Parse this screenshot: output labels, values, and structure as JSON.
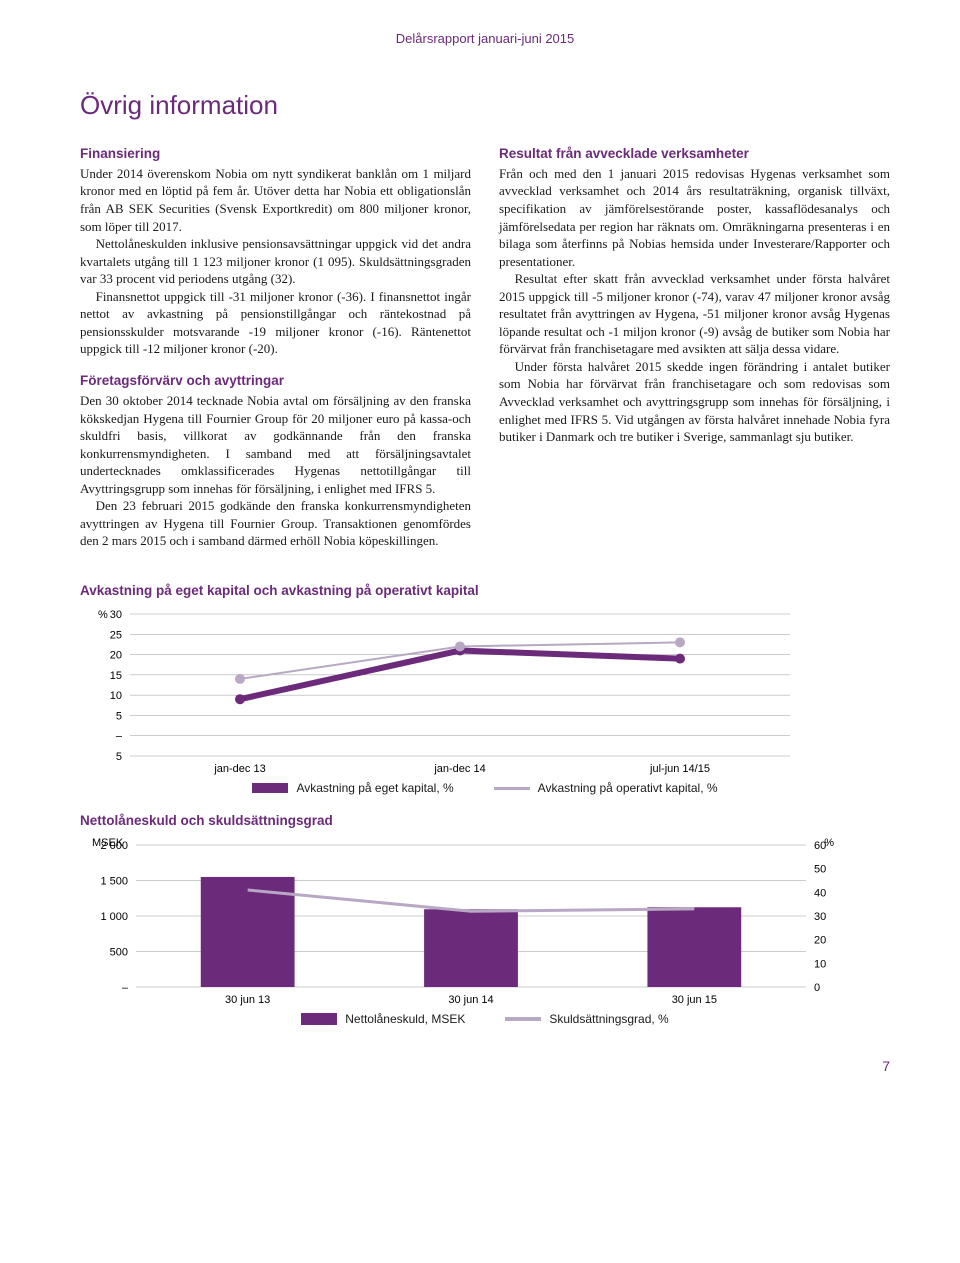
{
  "header": "Delårsrapport januari-juni 2015",
  "pageTitle": "Övrig information",
  "leftCol": {
    "s1_head": "Finansiering",
    "s1_p1": "Under 2014 överenskom Nobia om nytt syndikerat banklån om 1 miljard kronor med en löptid på fem år. Utöver detta har Nobia ett obligationslån från AB SEK Securities (Svensk Exportkredit) om 800 miljoner kronor, som löper till 2017.",
    "s1_p2": "Nettolåneskulden inklusive pensionsavsättningar uppgick vid det andra kvartalets utgång till 1 123 miljoner kronor (1 095). Skuldsättningsgraden var 33 procent vid periodens utgång (32).",
    "s1_p3": "Finansnettot uppgick till -31 miljoner kronor (-36). I finansnettot ingår nettot av avkastning på pensionstillgångar och räntekostnad på pensionsskulder motsvarande -19 miljoner kronor (-16). Räntenettot uppgick till -12 miljoner kronor (-20).",
    "s2_head": "Företagsförvärv och avyttringar",
    "s2_p1": "Den 30 oktober 2014 tecknade Nobia avtal om försäljning av den franska kökskedjan Hygena till Fournier Group för 20 miljoner euro på kassa-och skuldfri basis, villkorat av godkännande från den franska konkurrensmyndigheten. I samband med att försäljningsavtalet undertecknades omklassificerades Hygenas nettotillgångar till Avyttringsgrupp som innehas för försäljning, i enlighet med IFRS 5.",
    "s2_p2": "Den 23 februari 2015 godkände den franska konkurrensmyndigheten avyttringen av Hygena till Fournier Group. Transaktionen genomfördes den 2 mars 2015 och i samband därmed erhöll Nobia köpeskillingen."
  },
  "rightCol": {
    "s1_head": "Resultat från avvecklade verksamheter",
    "s1_p1": "Från och med den 1 januari 2015 redovisas Hygenas verksamhet som avvecklad verksamhet och 2014 års resultaträkning, organisk tillväxt, specifikation av jämförelsestörande poster, kassaflödesanalys och jämförelsedata per region har räknats om. Omräkningarna presenteras i en bilaga som återfinns på Nobias hemsida under Investerare/Rapporter och presentationer.",
    "s1_p2": "Resultat efter skatt från avvecklad verksamhet under första halvåret 2015 uppgick till -5 miljoner kronor (-74), varav 47 miljoner kronor avsåg resultatet från avyttringen av Hygena, -51 miljoner kronor avsåg Hygenas löpande resultat och -1 miljon kronor (-9) avsåg de butiker som Nobia har förvärvat från franchisetagare med avsikten att sälja dessa vidare.",
    "s1_p3": "Under första halvåret 2015 skedde ingen förändring i antalet butiker som Nobia har förvärvat från franchisetagare och som redovisas som Avvecklad verksamhet och avyttringsgrupp som innehas för försäljning, i enlighet med IFRS 5. Vid utgången av första halvåret innehade Nobia fyra butiker i Danmark och tre butiker i Sverige, sammanlagt sju butiker."
  },
  "chart1": {
    "title": "Avkastning på eget kapital och avkastning på operativt kapital",
    "type": "line",
    "y_unit": "%",
    "y_ticks": [
      -5,
      0,
      5,
      10,
      15,
      20,
      25,
      30
    ],
    "y_tick_labels": [
      "5",
      "–",
      "5",
      "10",
      "15",
      "20",
      "25",
      "30"
    ],
    "x_labels": [
      "jan-dec 13",
      "jan-dec 14",
      "jul-jun 14/15"
    ],
    "series": [
      {
        "label": "Avkastning på eget kapital, %",
        "color": "#6b2a7a",
        "swatch_w": 36,
        "swatch_h": 10,
        "values": [
          9,
          21,
          19
        ]
      },
      {
        "label": "Avkastning på operativt kapital, %",
        "color": "#b9a8c4",
        "swatch_w": 36,
        "swatch_h": 3,
        "values": [
          14,
          22,
          23
        ]
      }
    ],
    "grid_color": "#999",
    "bg": "#ffffff",
    "marker_radius": 5,
    "line_width_main": 6,
    "line_width_sec": 2
  },
  "chart2": {
    "title": "Nettolåneskuld och skuldsättningsgrad",
    "type": "bar-line",
    "left_unit": "MSEK",
    "right_unit": "%",
    "left_ticks": [
      0,
      500,
      1000,
      1500,
      2000
    ],
    "left_tick_labels": [
      "–",
      "500",
      "1 000",
      "1 500",
      "2 000"
    ],
    "right_ticks": [
      0,
      10,
      20,
      30,
      40,
      50,
      60
    ],
    "x_labels": [
      "30 jun 13",
      "30 jun 14",
      "30 jun 15"
    ],
    "bars": {
      "label": "Nettolåneskuld, MSEK",
      "color": "#6b2a7a",
      "values": [
        1550,
        1095,
        1123
      ],
      "width": 0.42
    },
    "line": {
      "label": "Skuldsättningsgrad, %",
      "color": "#b9a8c4",
      "values": [
        41,
        32,
        33
      ],
      "width": 3
    },
    "grid_color": "#999"
  },
  "pageNum": "7"
}
